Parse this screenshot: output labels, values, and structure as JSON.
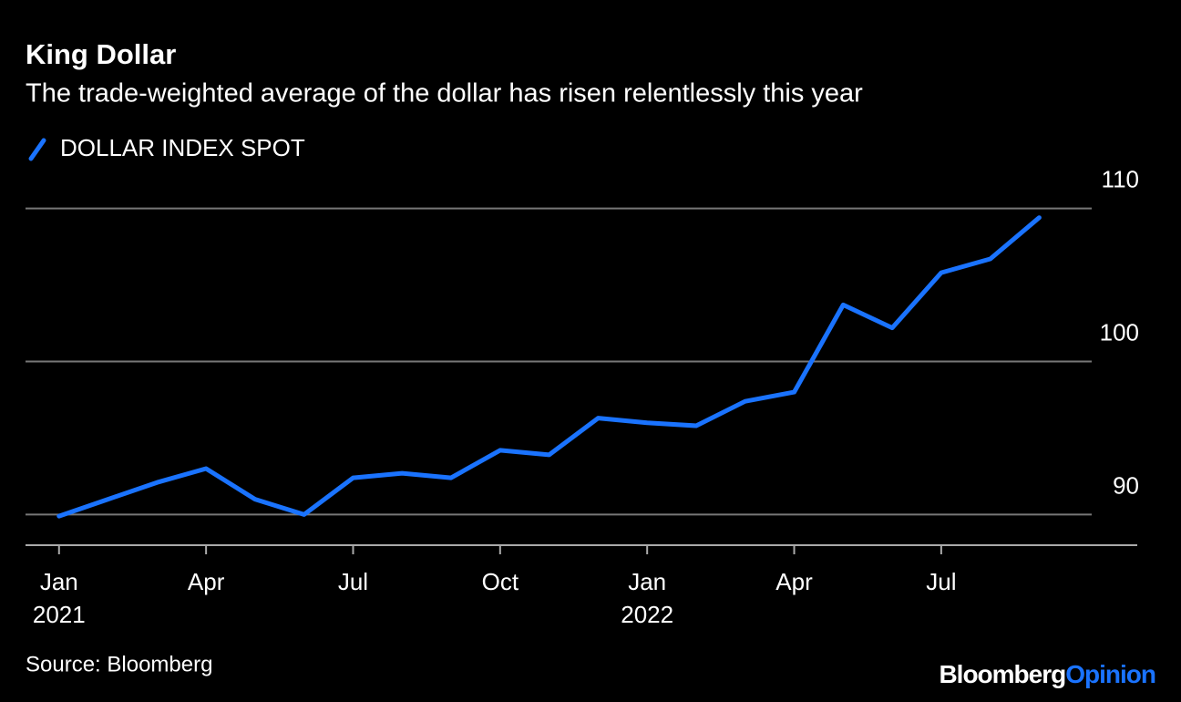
{
  "chart_data": {
    "type": "line",
    "title": "King Dollar",
    "subtitle": "The trade-weighted average of the dollar has risen relentlessly this year",
    "x": [
      "2021-01",
      "2021-02",
      "2021-03",
      "2021-04",
      "2021-05",
      "2021-06",
      "2021-07",
      "2021-08",
      "2021-09",
      "2021-10",
      "2021-11",
      "2021-12",
      "2022-01",
      "2022-02",
      "2022-03",
      "2022-04",
      "2022-05",
      "2022-06",
      "2022-07",
      "2022-08",
      "2022-09"
    ],
    "series": [
      {
        "name": "DOLLAR INDEX SPOT",
        "color": "#1a73ff",
        "values": [
          89.9,
          91.0,
          92.1,
          93.0,
          91.0,
          90.0,
          92.4,
          92.7,
          92.4,
          94.2,
          93.9,
          96.3,
          96.0,
          95.8,
          97.4,
          98.0,
          103.7,
          102.2,
          105.8,
          106.7,
          109.4
        ]
      }
    ],
    "xlim": [
      "2020-12",
      "2022-11"
    ],
    "xticks": [
      {
        "value": "2021-01",
        "label": "Jan"
      },
      {
        "value": "2021-04",
        "label": "Apr"
      },
      {
        "value": "2021-07",
        "label": "Jul"
      },
      {
        "value": "2021-10",
        "label": "Oct"
      },
      {
        "value": "2022-01",
        "label": "Jan"
      },
      {
        "value": "2022-04",
        "label": "Apr"
      },
      {
        "value": "2022-07",
        "label": "Jul"
      }
    ],
    "xtick_years": [
      {
        "value": "2021-01",
        "label": "2021"
      },
      {
        "value": "2022-01",
        "label": "2022"
      }
    ],
    "ylim": [
      88,
      112
    ],
    "yticks": [
      90,
      100,
      110
    ],
    "grid": true,
    "source": "Source: Bloomberg",
    "branding": [
      "Bloomberg",
      "Opinion"
    ]
  }
}
